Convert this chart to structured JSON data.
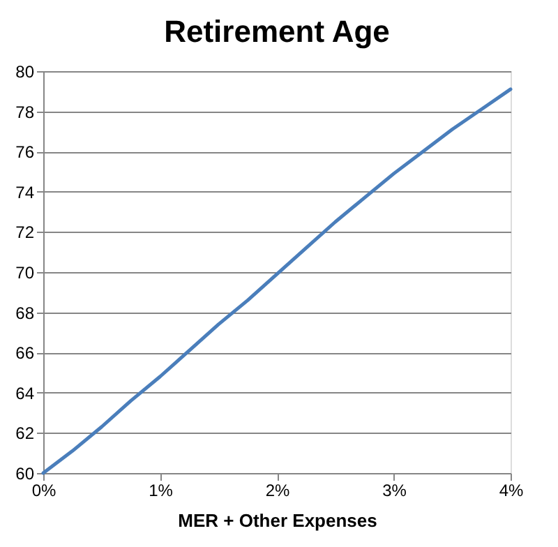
{
  "chart_data": {
    "type": "line",
    "title": "Retirement Age",
    "xlabel": "MER + Other Expenses",
    "x": [
      0,
      0.25,
      0.5,
      0.75,
      1,
      1.25,
      1.5,
      1.75,
      2,
      2.25,
      2.5,
      2.75,
      3,
      3.25,
      3.5,
      3.75,
      4
    ],
    "series": [
      {
        "color": "#4a7ebb",
        "values": [
          60,
          61.1,
          62.3,
          63.6,
          64.8,
          66.1,
          67.4,
          68.6,
          69.9,
          71.2,
          72.5,
          73.7,
          74.9,
          76.0,
          77.1,
          78.1,
          79.1
        ]
      }
    ],
    "xlim": [
      0,
      4
    ],
    "xticks": [
      {
        "value": 0,
        "label": "0%"
      },
      {
        "value": 1,
        "label": "1%"
      },
      {
        "value": 2,
        "label": "2%"
      },
      {
        "value": 3,
        "label": "3%"
      },
      {
        "value": 4,
        "label": "4%"
      }
    ],
    "ylim": [
      60,
      80
    ],
    "yticks": [
      60,
      62,
      64,
      66,
      68,
      70,
      72,
      74,
      76,
      78,
      80
    ],
    "grid": "y",
    "marker": "none",
    "line_style": "solid"
  }
}
